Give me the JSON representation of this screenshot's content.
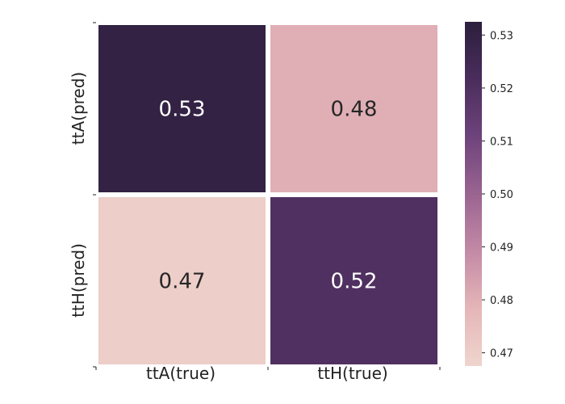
{
  "chart_data": {
    "type": "heatmap",
    "title": "",
    "x_categories": [
      "ttA(true)",
      "ttH(true)"
    ],
    "y_categories": [
      "ttA(pred)",
      "ttH(pred)"
    ],
    "values": [
      [
        0.53,
        0.48
      ],
      [
        0.47,
        0.52
      ]
    ],
    "value_labels": [
      [
        "0.53",
        "0.48"
      ],
      [
        "0.47",
        "0.52"
      ]
    ],
    "colorbar": {
      "range": [
        0.4675,
        0.5325
      ],
      "ticks": [
        0.47,
        0.48,
        0.49,
        0.5,
        0.51,
        0.52,
        0.53
      ],
      "tick_labels": [
        "0.47",
        "0.48",
        "0.49",
        "0.50",
        "0.51",
        "0.52",
        "0.53"
      ],
      "colors": [
        "#efd5ce",
        "#e5b6b8",
        "#c38aa6",
        "#9a6491",
        "#6e437c",
        "#4a2d5c",
        "#2c1f3d"
      ],
      "position": "right"
    },
    "cell_text_colors": {
      "dark": "#ffffff",
      "light": "#262626"
    },
    "grid": false
  }
}
